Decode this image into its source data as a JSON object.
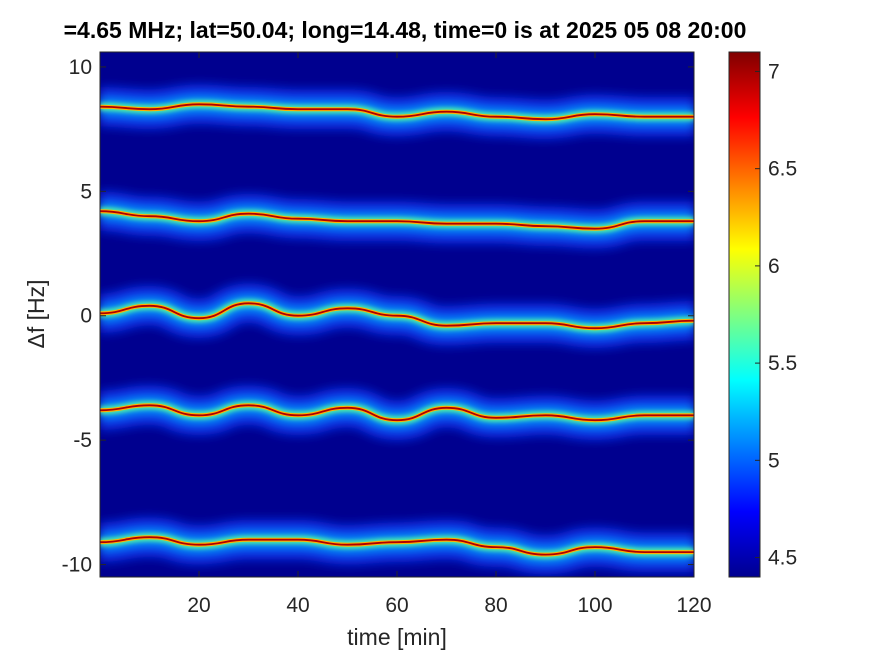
{
  "chart_data": {
    "type": "heatmap",
    "title": "=4.65 MHz;  lat=50.04; long=14.48, time=0 is at 2025 05 08 20:00",
    "xlabel": "time [min]",
    "ylabel": "Δf [Hz]",
    "xlim": [
      0,
      120
    ],
    "ylim": [
      -10.5,
      10.6
    ],
    "x_ticks": [
      "20",
      "40",
      "60",
      "80",
      "100",
      "120"
    ],
    "x_tick_values": [
      20,
      40,
      60,
      80,
      100,
      120
    ],
    "y_ticks": [
      "10",
      "5",
      "0",
      "-5",
      "-10"
    ],
    "y_tick_values": [
      10,
      5,
      0,
      -5,
      -10
    ],
    "colorbar": {
      "range": [
        4.4,
        7.1
      ],
      "ticks": [
        "7",
        "6.5",
        "6",
        "5.5",
        "5",
        "4.5"
      ],
      "tick_values": [
        7,
        6.5,
        6,
        5.5,
        5,
        4.5
      ],
      "colormap": "jet"
    },
    "background_color": "#00008f",
    "grid": false,
    "series": [
      {
        "x": [
          0,
          10,
          20,
          30,
          40,
          50,
          60,
          70,
          80,
          90,
          100,
          110,
          120
        ],
        "y": [
          8.4,
          8.3,
          8.5,
          8.4,
          8.3,
          8.3,
          8.0,
          8.2,
          8.0,
          7.9,
          8.1,
          8.0,
          8.0
        ]
      },
      {
        "x": [
          0,
          10,
          20,
          30,
          40,
          50,
          60,
          70,
          80,
          90,
          100,
          110,
          120
        ],
        "y": [
          4.2,
          4.0,
          3.8,
          4.1,
          3.9,
          3.8,
          3.8,
          3.7,
          3.7,
          3.6,
          3.5,
          3.8,
          3.8
        ]
      },
      {
        "x": [
          0,
          10,
          20,
          30,
          40,
          50,
          60,
          70,
          80,
          90,
          100,
          110,
          120
        ],
        "y": [
          0.1,
          0.4,
          -0.1,
          0.5,
          0.0,
          0.3,
          0.0,
          -0.4,
          -0.3,
          -0.3,
          -0.5,
          -0.3,
          -0.2
        ]
      },
      {
        "x": [
          0,
          10,
          20,
          30,
          40,
          50,
          60,
          70,
          80,
          90,
          100,
          110,
          120
        ],
        "y": [
          -3.8,
          -3.6,
          -4.0,
          -3.6,
          -4.0,
          -3.7,
          -4.2,
          -3.7,
          -4.1,
          -4.0,
          -4.2,
          -4.0,
          -4.0
        ]
      },
      {
        "x": [
          0,
          10,
          20,
          30,
          40,
          50,
          60,
          70,
          80,
          90,
          100,
          110,
          120
        ],
        "y": [
          -9.1,
          -8.9,
          -9.2,
          -9.0,
          -9.0,
          -9.2,
          -9.1,
          -9.0,
          -9.3,
          -9.6,
          -9.3,
          -9.5,
          -9.5
        ]
      }
    ]
  }
}
